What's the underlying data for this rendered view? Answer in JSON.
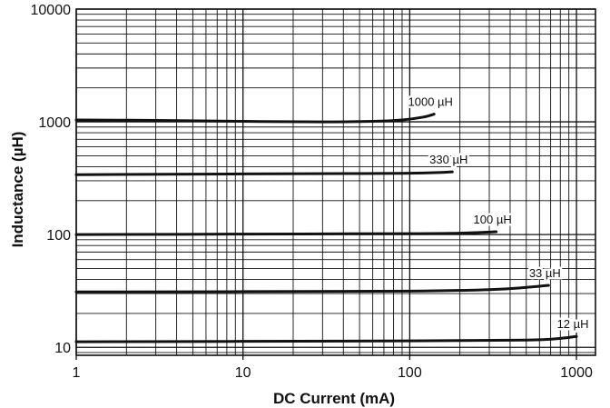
{
  "chart_data": {
    "type": "line",
    "title": "",
    "xlabel": "DC Current (mA)",
    "ylabel": "Inductance (µH)",
    "xscale": "log",
    "yscale": "log",
    "xlim": [
      1,
      1300
    ],
    "ylim": [
      8.5,
      10000
    ],
    "grid": true,
    "xticks": [
      {
        "value": 1,
        "label": "1"
      },
      {
        "value": 10,
        "label": "10"
      },
      {
        "value": 100,
        "label": "100"
      },
      {
        "value": 1000,
        "label": "1000"
      }
    ],
    "yticks": [
      {
        "value": 10,
        "label": "10"
      },
      {
        "value": 100,
        "label": "100"
      },
      {
        "value": 1000,
        "label": "1000"
      },
      {
        "value": 10000,
        "label": "10000"
      }
    ],
    "series": [
      {
        "name": "1000 µH",
        "x": [
          1,
          3,
          10,
          30,
          60,
          90,
          120,
          140
        ],
        "y": [
          1040,
          1030,
          1010,
          1000,
          1010,
          1040,
          1100,
          1170
        ]
      },
      {
        "name": "330 µH",
        "x": [
          1,
          10,
          50,
          100,
          150,
          180
        ],
        "y": [
          340,
          345,
          348,
          350,
          355,
          360
        ]
      },
      {
        "name": "100 µH",
        "x": [
          1,
          10,
          100,
          200,
          330
        ],
        "y": [
          100,
          101,
          102,
          103,
          106
        ]
      },
      {
        "name": "33 µH",
        "x": [
          1,
          10,
          100,
          300,
          500,
          680
        ],
        "y": [
          31,
          31.2,
          31.5,
          32.5,
          34,
          35.5
        ]
      },
      {
        "name": "12 µH",
        "x": [
          1,
          10,
          100,
          500,
          800,
          1000
        ],
        "y": [
          11.2,
          11.3,
          11.4,
          11.6,
          12,
          12.5
        ]
      }
    ],
    "colors": {
      "line": "#111111",
      "grid": "#111111",
      "background": "#ffffff"
    }
  }
}
